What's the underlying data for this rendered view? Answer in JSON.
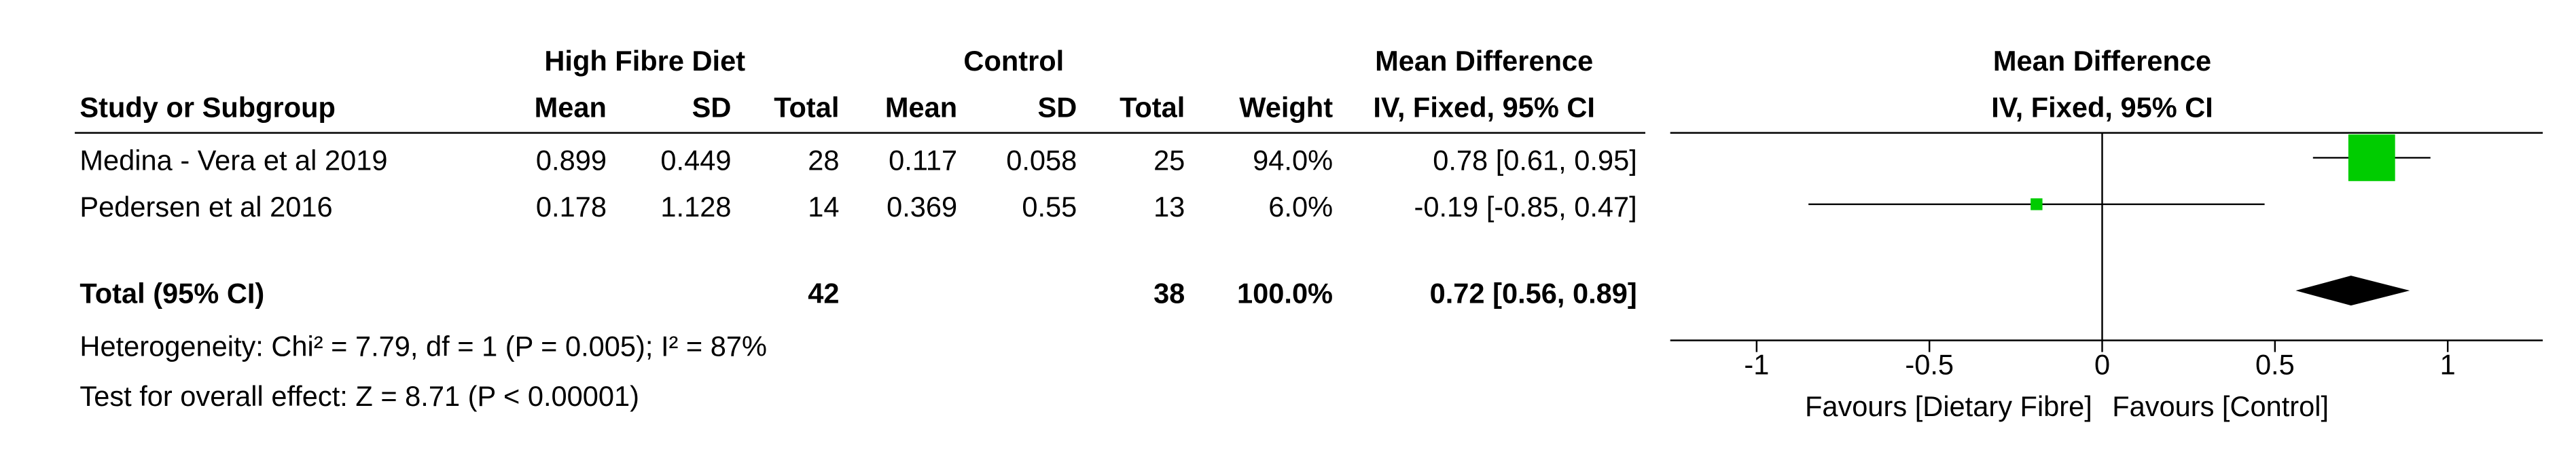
{
  "table": {
    "groups": [
      "High Fibre Diet",
      "Control",
      "Mean Difference"
    ],
    "columns": [
      "Study or Subgroup",
      "Mean",
      "SD",
      "Total",
      "Mean",
      "SD",
      "Total",
      "Weight",
      "IV, Fixed, 95% CI"
    ],
    "rows": [
      [
        "Medina - Vera et al 2019",
        "0.899",
        "0.449",
        "28",
        "0.117",
        "0.058",
        "25",
        "94.0%",
        "0.78 [0.61, 0.95]"
      ],
      [
        "Pedersen et al 2016",
        "0.178",
        "1.128",
        "14",
        "0.369",
        "0.55",
        "13",
        "6.0%",
        "-0.19 [-0.85, 0.47]"
      ]
    ],
    "total": {
      "label": "Total (95% CI)",
      "total_exp": "42",
      "total_ctrl": "38",
      "weight": "100.0%",
      "md": "0.72 [0.56, 0.89]"
    },
    "heterogeneity": "Heterogeneity: Chi² = 7.79, df = 1 (P = 0.005); I² = 87%",
    "overall_effect": "Test for overall effect: Z = 8.71 (P < 0.00001)"
  },
  "chart_data": {
    "type": "forest",
    "title": "Mean Difference",
    "subtitle": "IV, Fixed, 95% CI",
    "values": [
      0.78,
      -0.19
    ],
    "lower": [
      0.61,
      -0.85
    ],
    "upper": [
      0.95,
      0.47
    ],
    "weights": [
      94.0,
      6.0
    ],
    "total": {
      "value": 0.72,
      "lower": 0.56,
      "upper": 0.89
    },
    "xlim": [
      -1.25,
      1.275
    ],
    "xticks": [
      -1,
      -0.5,
      0,
      0.5,
      1
    ],
    "favours": [
      "Favours [Dietary Fibre]",
      "Favours [Control]"
    ],
    "color": "#00cc00",
    "total_color": "#000000"
  }
}
